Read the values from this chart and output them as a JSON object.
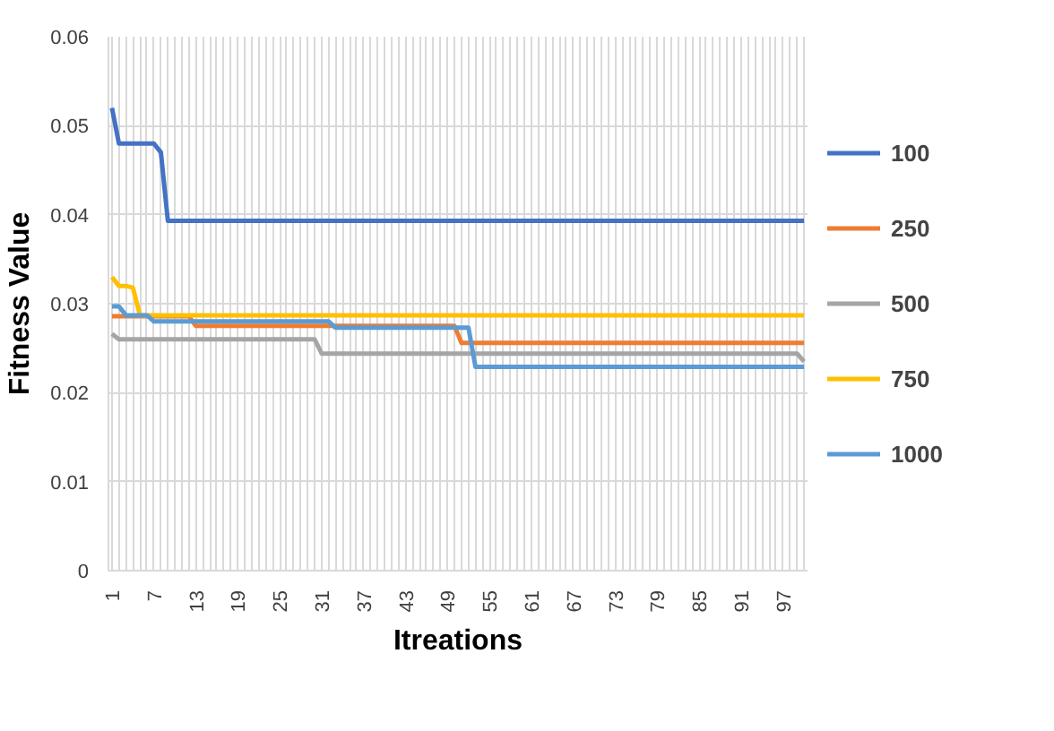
{
  "chart_data": {
    "type": "line",
    "xlabel": "Itreations",
    "ylabel": "Fitness Value",
    "categories": [
      "1",
      null,
      null,
      null,
      null,
      null,
      "7",
      null,
      null,
      null,
      null,
      null,
      "13",
      null,
      null,
      null,
      null,
      null,
      "19",
      null,
      null,
      null,
      null,
      null,
      "25",
      null,
      null,
      null,
      null,
      null,
      "31",
      null,
      null,
      null,
      null,
      null,
      "37",
      null,
      null,
      null,
      null,
      null,
      "43",
      null,
      null,
      null,
      null,
      null,
      "49",
      null,
      null,
      null,
      null,
      null,
      "55",
      null,
      null,
      null,
      null,
      null,
      "61",
      null,
      null,
      null,
      null,
      null,
      "67",
      null,
      null,
      null,
      null,
      null,
      "73",
      null,
      null,
      null,
      null,
      null,
      "79",
      null,
      null,
      null,
      null,
      null,
      "85",
      null,
      null,
      null,
      null,
      null,
      "91",
      null,
      null,
      null,
      null,
      null,
      "97",
      null,
      null,
      null
    ],
    "ylim": [
      0,
      0.06
    ],
    "yticks": [
      0,
      0.01,
      0.02,
      0.03,
      0.04,
      0.05,
      0.06
    ],
    "grid": true,
    "legend": "right",
    "series": [
      {
        "name": "100",
        "color": "#4472c4",
        "values": [
          0.052,
          0.048,
          0.048,
          0.048,
          0.048,
          0.048,
          0.048,
          0.047,
          0.0393,
          0.0393,
          0.0393,
          0.0393,
          0.0393,
          0.0393,
          0.0393,
          0.0393,
          0.0393,
          0.0393,
          0.0393,
          0.0393,
          0.0393,
          0.0393,
          0.0393,
          0.0393,
          0.0393,
          0.0393,
          0.0393,
          0.0393,
          0.0393,
          0.0393,
          0.0393,
          0.0393,
          0.0393,
          0.0393,
          0.0393,
          0.0393,
          0.0393,
          0.0393,
          0.0393,
          0.0393,
          0.0393,
          0.0393,
          0.0393,
          0.0393,
          0.0393,
          0.0393,
          0.0393,
          0.0393,
          0.0393,
          0.0393,
          0.0393,
          0.0393,
          0.0393,
          0.0393,
          0.0393,
          0.0393,
          0.0393,
          0.0393,
          0.0393,
          0.0393,
          0.0393,
          0.0393,
          0.0393,
          0.0393,
          0.0393,
          0.0393,
          0.0393,
          0.0393,
          0.0393,
          0.0393,
          0.0393,
          0.0393,
          0.0393,
          0.0393,
          0.0393,
          0.0393,
          0.0393,
          0.0393,
          0.0393,
          0.0393,
          0.0393,
          0.0393,
          0.0393,
          0.0393,
          0.0393,
          0.0393,
          0.0393,
          0.0393,
          0.0393,
          0.0393,
          0.0393,
          0.0393,
          0.0393,
          0.0393,
          0.0393,
          0.0393,
          0.0393,
          0.0393,
          0.0393,
          0.0393
        ]
      },
      {
        "name": "250",
        "color": "#ed7d31",
        "values": [
          0.0286,
          0.0286,
          0.0286,
          0.0286,
          0.0286,
          0.0286,
          0.0286,
          0.0286,
          0.0286,
          0.0286,
          0.0286,
          0.0286,
          0.0275,
          0.0275,
          0.0275,
          0.0275,
          0.0275,
          0.0275,
          0.0275,
          0.0275,
          0.0275,
          0.0275,
          0.0275,
          0.0275,
          0.0275,
          0.0275,
          0.0275,
          0.0275,
          0.0275,
          0.0275,
          0.0275,
          0.0275,
          0.0275,
          0.0275,
          0.0275,
          0.0275,
          0.0275,
          0.0275,
          0.0275,
          0.0275,
          0.0275,
          0.0275,
          0.0275,
          0.0275,
          0.0275,
          0.0275,
          0.0275,
          0.0275,
          0.0275,
          0.0275,
          0.0256,
          0.0256,
          0.0256,
          0.0256,
          0.0256,
          0.0256,
          0.0256,
          0.0256,
          0.0256,
          0.0256,
          0.0256,
          0.0256,
          0.0256,
          0.0256,
          0.0256,
          0.0256,
          0.0256,
          0.0256,
          0.0256,
          0.0256,
          0.0256,
          0.0256,
          0.0256,
          0.0256,
          0.0256,
          0.0256,
          0.0256,
          0.0256,
          0.0256,
          0.0256,
          0.0256,
          0.0256,
          0.0256,
          0.0256,
          0.0256,
          0.0256,
          0.0256,
          0.0256,
          0.0256,
          0.0256,
          0.0256,
          0.0256,
          0.0256,
          0.0256,
          0.0256,
          0.0256,
          0.0256,
          0.0256,
          0.0256,
          0.0256
        ]
      },
      {
        "name": "500",
        "color": "#a5a5a5",
        "values": [
          0.0266,
          0.026,
          0.026,
          0.026,
          0.026,
          0.026,
          0.026,
          0.026,
          0.026,
          0.026,
          0.026,
          0.026,
          0.026,
          0.026,
          0.026,
          0.026,
          0.026,
          0.026,
          0.026,
          0.026,
          0.026,
          0.026,
          0.026,
          0.026,
          0.026,
          0.026,
          0.026,
          0.026,
          0.026,
          0.026,
          0.0244,
          0.0244,
          0.0244,
          0.0244,
          0.0244,
          0.0244,
          0.0244,
          0.0244,
          0.0244,
          0.0244,
          0.0244,
          0.0244,
          0.0244,
          0.0244,
          0.0244,
          0.0244,
          0.0244,
          0.0244,
          0.0244,
          0.0244,
          0.0244,
          0.0244,
          0.0244,
          0.0244,
          0.0244,
          0.0244,
          0.0244,
          0.0244,
          0.0244,
          0.0244,
          0.0244,
          0.0244,
          0.0244,
          0.0244,
          0.0244,
          0.0244,
          0.0244,
          0.0244,
          0.0244,
          0.0244,
          0.0244,
          0.0244,
          0.0244,
          0.0244,
          0.0244,
          0.0244,
          0.0244,
          0.0244,
          0.0244,
          0.0244,
          0.0244,
          0.0244,
          0.0244,
          0.0244,
          0.0244,
          0.0244,
          0.0244,
          0.0244,
          0.0244,
          0.0244,
          0.0244,
          0.0244,
          0.0244,
          0.0244,
          0.0244,
          0.0244,
          0.0244,
          0.0244,
          0.0244,
          0.0235
        ]
      },
      {
        "name": "750",
        "color": "#ffc000",
        "values": [
          0.033,
          0.032,
          0.032,
          0.0318,
          0.0287,
          0.0287,
          0.0287,
          0.0287,
          0.0287,
          0.0287,
          0.0287,
          0.0287,
          0.0287,
          0.0287,
          0.0287,
          0.0287,
          0.0287,
          0.0287,
          0.0287,
          0.0287,
          0.0287,
          0.0287,
          0.0287,
          0.0287,
          0.0287,
          0.0287,
          0.0287,
          0.0287,
          0.0287,
          0.0287,
          0.0287,
          0.0287,
          0.0287,
          0.0287,
          0.0287,
          0.0287,
          0.0287,
          0.0287,
          0.0287,
          0.0287,
          0.0287,
          0.0287,
          0.0287,
          0.0287,
          0.0287,
          0.0287,
          0.0287,
          0.0287,
          0.0287,
          0.0287,
          0.0287,
          0.0287,
          0.0287,
          0.0287,
          0.0287,
          0.0287,
          0.0287,
          0.0287,
          0.0287,
          0.0287,
          0.0287,
          0.0287,
          0.0287,
          0.0287,
          0.0287,
          0.0287,
          0.0287,
          0.0287,
          0.0287,
          0.0287,
          0.0287,
          0.0287,
          0.0287,
          0.0287,
          0.0287,
          0.0287,
          0.0287,
          0.0287,
          0.0287,
          0.0287,
          0.0287,
          0.0287,
          0.0287,
          0.0287,
          0.0287,
          0.0287,
          0.0287,
          0.0287,
          0.0287,
          0.0287,
          0.0287,
          0.0287,
          0.0287,
          0.0287,
          0.0287,
          0.0287,
          0.0287,
          0.0287,
          0.0287,
          0.0287
        ]
      },
      {
        "name": "1000",
        "color": "#5b9bd5",
        "values": [
          0.0297,
          0.0297,
          0.0287,
          0.0287,
          0.0287,
          0.0287,
          0.028,
          0.028,
          0.028,
          0.028,
          0.028,
          0.028,
          0.028,
          0.028,
          0.028,
          0.028,
          0.028,
          0.028,
          0.028,
          0.028,
          0.028,
          0.028,
          0.028,
          0.028,
          0.028,
          0.028,
          0.028,
          0.028,
          0.028,
          0.028,
          0.028,
          0.028,
          0.0273,
          0.0273,
          0.0273,
          0.0273,
          0.0273,
          0.0273,
          0.0273,
          0.0273,
          0.0273,
          0.0273,
          0.0273,
          0.0273,
          0.0273,
          0.0273,
          0.0273,
          0.0273,
          0.0273,
          0.0273,
          0.0273,
          0.0273,
          0.0229,
          0.0229,
          0.0229,
          0.0229,
          0.0229,
          0.0229,
          0.0229,
          0.0229,
          0.0229,
          0.0229,
          0.0229,
          0.0229,
          0.0229,
          0.0229,
          0.0229,
          0.0229,
          0.0229,
          0.0229,
          0.0229,
          0.0229,
          0.0229,
          0.0229,
          0.0229,
          0.0229,
          0.0229,
          0.0229,
          0.0229,
          0.0229,
          0.0229,
          0.0229,
          0.0229,
          0.0229,
          0.0229,
          0.0229,
          0.0229,
          0.0229,
          0.0229,
          0.0229,
          0.0229,
          0.0229,
          0.0229,
          0.0229,
          0.0229,
          0.0229,
          0.0229,
          0.0229,
          0.0229,
          0.0229
        ]
      }
    ]
  }
}
